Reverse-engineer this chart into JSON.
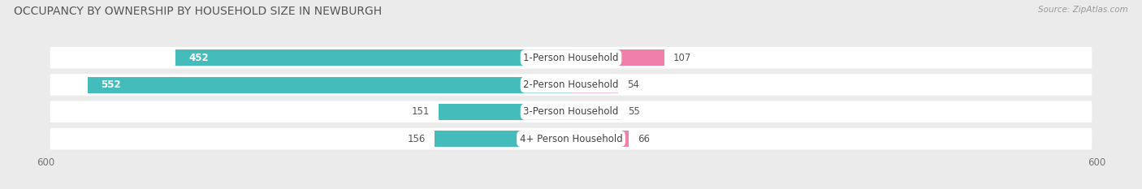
{
  "title": "OCCUPANCY BY OWNERSHIP BY HOUSEHOLD SIZE IN NEWBURGH",
  "source": "Source: ZipAtlas.com",
  "categories": [
    "1-Person Household",
    "2-Person Household",
    "3-Person Household",
    "4+ Person Household"
  ],
  "owner_values": [
    452,
    552,
    151,
    156
  ],
  "renter_values": [
    107,
    54,
    55,
    66
  ],
  "owner_color": "#45BCBC",
  "renter_color": "#F07FAA",
  "bg_color": "#ebebeb",
  "row_bg_color": "#ffffff",
  "axis_min": -600,
  "axis_max": 600,
  "title_fontsize": 10,
  "label_fontsize": 8.5,
  "bar_height": 0.6
}
